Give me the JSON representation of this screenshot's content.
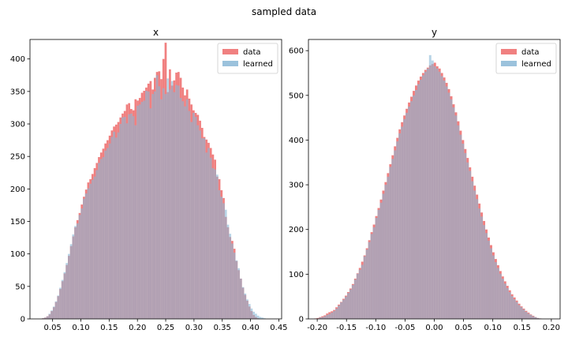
{
  "figure_title": "sampled data",
  "colors": {
    "data": "#f08080",
    "learned": "#89b7d6"
  },
  "chart_data": [
    {
      "type": "histogram",
      "title": "x",
      "xlabel": "",
      "ylabel": "",
      "xlim": [
        0.01,
        0.455
      ],
      "ylim": [
        0,
        430
      ],
      "xticks": [
        0.05,
        0.1,
        0.15,
        0.2,
        0.25,
        0.3,
        0.35,
        0.4,
        0.45
      ],
      "xtick_labels": [
        "0.05",
        "0.10",
        "0.15",
        "0.20",
        "0.25",
        "0.30",
        "0.35",
        "0.40",
        "0.45"
      ],
      "yticks": [
        0,
        50,
        100,
        150,
        200,
        250,
        300,
        350,
        400
      ],
      "ytick_labels": [
        "0",
        "50",
        "100",
        "150",
        "200",
        "250",
        "300",
        "350",
        "400"
      ],
      "legend": {
        "placement": "top-right",
        "entries": [
          "data",
          "learned"
        ]
      },
      "series": [
        {
          "name": "data",
          "bin_start": 0.02,
          "bin_width": 0.0038,
          "counts": [
            0,
            0,
            0,
            1,
            2,
            4,
            7,
            12,
            18,
            26,
            35,
            46,
            58,
            70,
            83,
            97,
            112,
            127,
            141,
            152,
            163,
            176,
            188,
            199,
            210,
            215,
            223,
            232,
            240,
            249,
            256,
            262,
            270,
            275,
            282,
            290,
            296,
            299,
            303,
            310,
            316,
            320,
            330,
            332,
            323,
            321,
            338,
            336,
            340,
            348,
            351,
            356,
            362,
            366,
            353,
            371,
            380,
            381,
            369,
            400,
            425,
            349,
            384,
            359,
            367,
            379,
            380,
            371,
            356,
            344,
            353,
            339,
            330,
            321,
            317,
            314,
            305,
            294,
            280,
            276,
            271,
            263,
            253,
            245,
            219,
            215,
            198,
            186,
            157,
            141,
            126,
            120,
            108,
            89,
            75,
            62,
            48,
            37,
            28,
            19,
            12,
            6,
            3,
            1,
            0,
            0,
            0,
            0,
            0,
            0,
            0,
            0,
            0,
            0,
            0,
            0,
            0,
            0
          ]
        },
        {
          "name": "learned",
          "bin_start": 0.02,
          "bin_width": 0.0038,
          "counts": [
            0,
            0,
            0,
            1,
            2,
            4,
            8,
            13,
            19,
            27,
            36,
            48,
            60,
            72,
            86,
            100,
            115,
            130,
            143,
            147,
            160,
            170,
            185,
            193,
            201,
            208,
            214,
            219,
            229,
            240,
            246,
            249,
            259,
            263,
            270,
            280,
            288,
            279,
            287,
            300,
            310,
            311,
            301,
            315,
            316,
            312,
            298,
            328,
            330,
            334,
            336,
            351,
            350,
            324,
            346,
            350,
            375,
            358,
            338,
            355,
            346,
            370,
            353,
            366,
            349,
            360,
            359,
            340,
            335,
            327,
            338,
            320,
            303,
            317,
            311,
            298,
            290,
            278,
            278,
            256,
            263,
            248,
            232,
            230,
            222,
            198,
            188,
            178,
            168,
            145,
            131,
            116,
            102,
            90,
            78,
            62,
            49,
            39,
            30,
            23,
            16,
            11,
            8,
            5,
            3,
            2,
            1,
            0,
            0,
            0,
            0,
            0,
            0,
            0,
            0,
            0,
            0,
            0
          ]
        }
      ]
    },
    {
      "type": "histogram",
      "title": "y",
      "xlabel": "",
      "ylabel": "",
      "xlim": [
        -0.215,
        0.215
      ],
      "ylim": [
        0,
        625
      ],
      "xticks": [
        -0.2,
        -0.15,
        -0.1,
        -0.05,
        0.0,
        0.05,
        0.1,
        0.15,
        0.2
      ],
      "xtick_labels": [
        "-0.20",
        "-0.15",
        "-0.10",
        "-0.05",
        "0.00",
        "0.05",
        "0.10",
        "0.15",
        "0.20"
      ],
      "yticks": [
        0,
        100,
        200,
        300,
        400,
        500,
        600
      ],
      "ytick_labels": [
        "0",
        "100",
        "200",
        "300",
        "400",
        "500",
        "600"
      ],
      "legend": {
        "placement": "top-right",
        "entries": [
          "data",
          "learned"
        ]
      },
      "series": [
        {
          "name": "data",
          "bin_start": -0.205,
          "bin_width": 0.004,
          "counts": [
            1,
            2,
            4,
            6,
            8,
            12,
            15,
            17,
            20,
            26,
            32,
            38,
            45,
            52,
            60,
            68,
            78,
            90,
            102,
            114,
            128,
            142,
            158,
            176,
            194,
            211,
            230,
            248,
            267,
            287,
            306,
            326,
            346,
            366,
            386,
            405,
            424,
            440,
            455,
            470,
            484,
            497,
            510,
            522,
            533,
            542,
            550,
            557,
            562,
            567,
            570,
            573,
            565,
            560,
            550,
            540,
            528,
            514,
            498,
            480,
            462,
            442,
            421,
            400,
            380,
            360,
            339,
            318,
            298,
            278,
            258,
            238,
            219,
            200,
            182,
            165,
            149,
            134,
            120,
            107,
            95,
            84,
            74,
            64,
            55,
            48,
            41,
            34,
            28,
            23,
            18,
            14,
            10,
            7,
            4,
            2,
            1,
            0
          ]
        },
        {
          "name": "learned",
          "bin_start": -0.205,
          "bin_width": 0.004,
          "counts": [
            0,
            1,
            3,
            4,
            6,
            9,
            11,
            14,
            18,
            23,
            30,
            37,
            43,
            50,
            58,
            66,
            76,
            88,
            101,
            110,
            121,
            140,
            155,
            172,
            190,
            205,
            226,
            244,
            260,
            280,
            300,
            318,
            340,
            358,
            377,
            397,
            415,
            430,
            447,
            461,
            475,
            487,
            500,
            512,
            525,
            535,
            545,
            553,
            560,
            590,
            578,
            565,
            560,
            553,
            543,
            533,
            520,
            506,
            491,
            473,
            455,
            433,
            412,
            392,
            371,
            350,
            331,
            308,
            287,
            268,
            247,
            229,
            210,
            192,
            175,
            158,
            142,
            127,
            114,
            101,
            90,
            79,
            69,
            60,
            51,
            44,
            38,
            31,
            26,
            21,
            16,
            12,
            9,
            6,
            4,
            2,
            1,
            0
          ]
        }
      ]
    }
  ]
}
